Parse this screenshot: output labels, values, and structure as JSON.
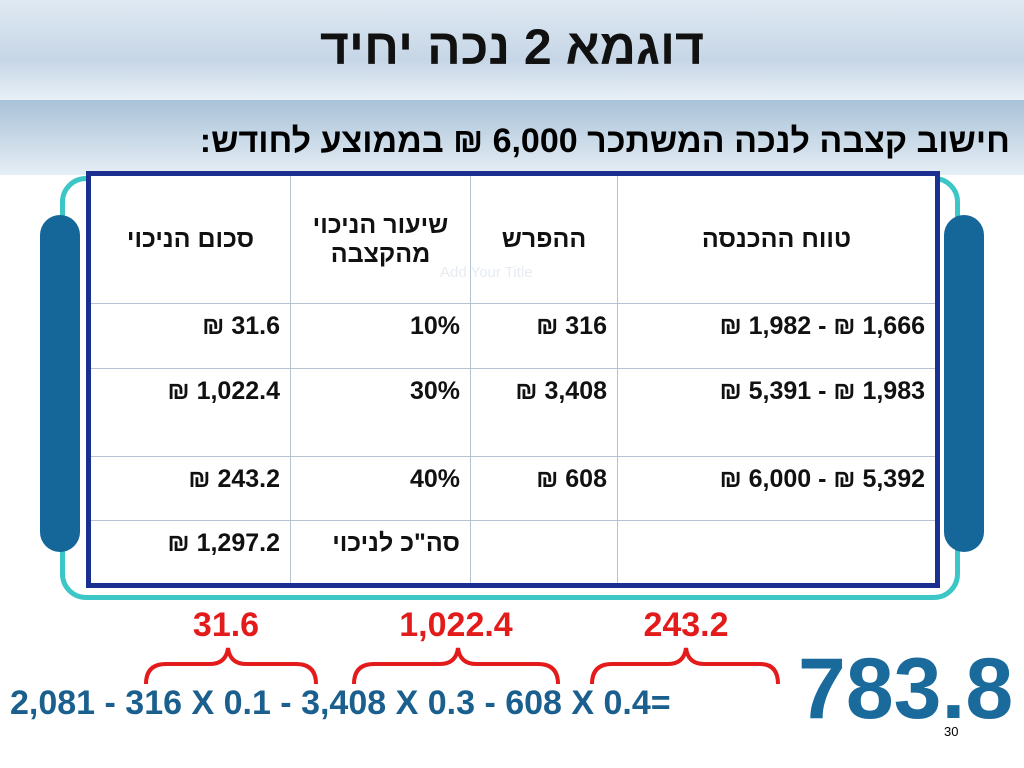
{
  "header": {
    "title": "דוגמא 2 נכה יחיד",
    "subtitle": "חישוב קצבה לנכה המשתכר 6,000 ₪ בממוצע לחודש:"
  },
  "table": {
    "headers": [
      "טווח ההכנסה",
      "ההפרש",
      "שיעור הניכוי מהקצבה",
      "סכום הניכוי"
    ],
    "rows": [
      [
        "1,666 ₪ - 1,982 ₪",
        "316 ₪",
        "10%",
        "31.6 ₪"
      ],
      [
        "1,983 ₪ - 5,391 ₪",
        "3,408 ₪",
        "30%",
        "1,022.4 ₪"
      ],
      [
        "5,392 ₪ - 6,000 ₪",
        "608 ₪",
        "40%",
        "243.2 ₪"
      ]
    ],
    "total": {
      "label": "סה\"כ לניכוי",
      "value": "1,297.2 ₪"
    }
  },
  "ghost_text": "Add Your Title",
  "calculation": {
    "brace_labels": [
      "31.6",
      "1,022.4",
      "243.2"
    ],
    "formula": "2,081 - 316 X 0.1 - 3,408 X 0.3 - 608 X 0.4=",
    "result": "783.8"
  },
  "footer": {
    "page_number": "30"
  }
}
